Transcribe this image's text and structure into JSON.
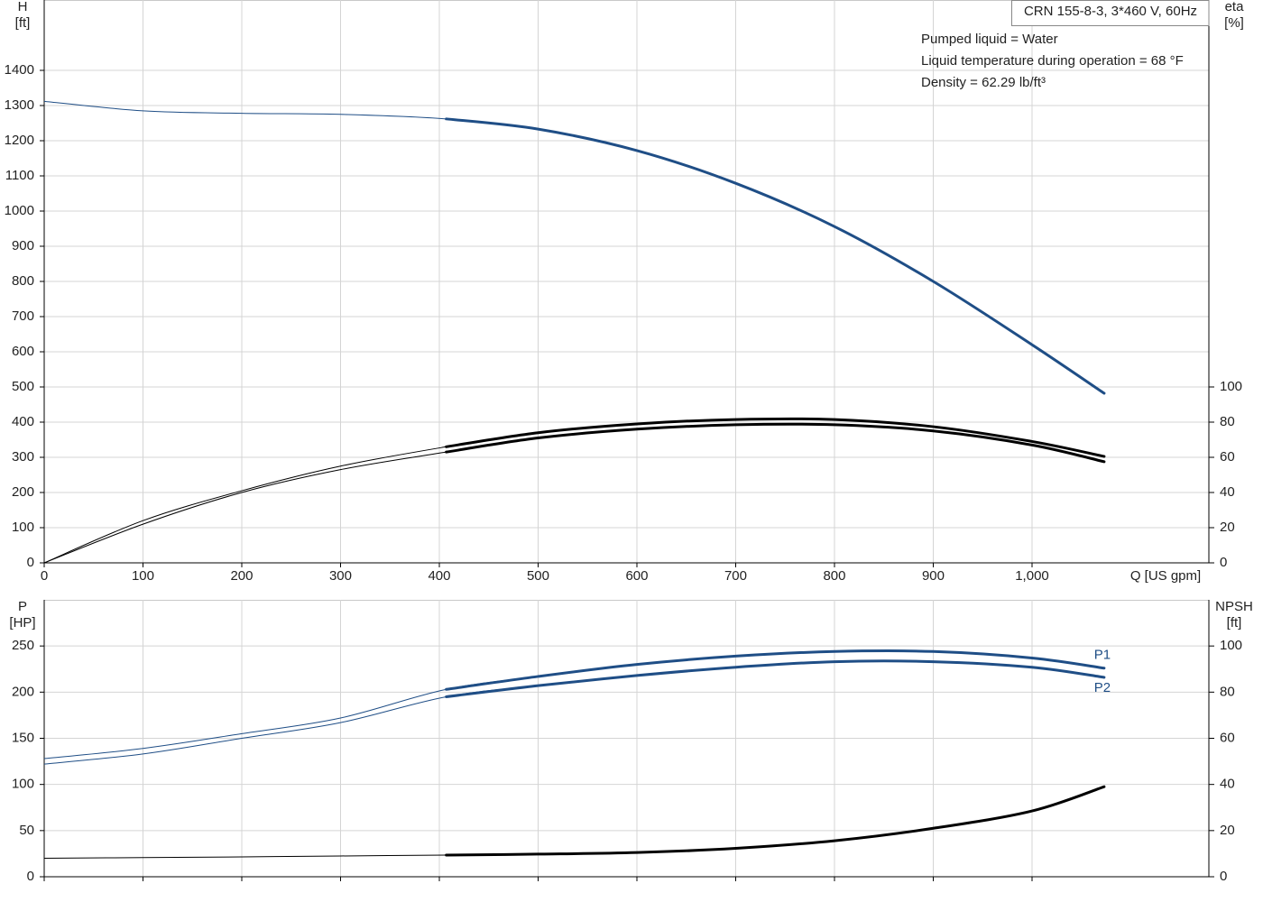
{
  "chart_data": [
    {
      "type": "line",
      "title": "CRN 155-8-3, 3*460 V, 60Hz",
      "annotations": [
        "Pumped liquid = Water",
        "Liquid temperature during operation = 68 °F",
        "Density = 62.29 lb/ft³"
      ],
      "ylabel": "H",
      "yunit": "[ft]",
      "y2label": "eta",
      "y2unit": "[%]",
      "xlabel": "Q [US gpm]",
      "x": [
        0,
        100,
        200,
        300,
        407,
        500,
        600,
        700,
        800,
        900,
        1000,
        1073
      ],
      "xlim": [
        0,
        1179
      ],
      "xticks": [
        0,
        100,
        200,
        300,
        400,
        500,
        600,
        700,
        800,
        900,
        {
          "value": 1000,
          "label": "1,000"
        }
      ],
      "ylim": [
        0,
        1600
      ],
      "yticks": [
        0,
        100,
        200,
        300,
        400,
        500,
        600,
        700,
        800,
        900,
        1000,
        1100,
        1200,
        1300,
        1400
      ],
      "y2lim": [
        0,
        320
      ],
      "y2ticks": [
        0,
        20,
        40,
        60,
        80,
        100
      ],
      "grid": true,
      "operating_range": [
        407,
        1073
      ],
      "series": [
        {
          "color": "#1f4e86",
          "values": [
            1312,
            1285,
            1278,
            1275,
            1262,
            1233,
            1172,
            1079,
            956,
            800,
            620,
            482
          ]
        },
        {
          "color": "#000000",
          "axis": "y2",
          "values": [
            0,
            24,
            41,
            55,
            66,
            74,
            79,
            81.5,
            81.5,
            77.4,
            69,
            60.5
          ]
        },
        {
          "color": "#000000",
          "axis": "y2",
          "values": [
            0,
            22,
            40,
            53,
            63,
            71,
            76,
            78.5,
            78.5,
            75,
            67,
            57.5
          ]
        }
      ]
    },
    {
      "type": "line",
      "ylabel": "P",
      "yunit": "[HP]",
      "y2label": "NPSH",
      "y2unit": "[ft]",
      "x": [
        0,
        100,
        200,
        300,
        407,
        500,
        600,
        700,
        800,
        900,
        1000,
        1073
      ],
      "xlim": [
        0,
        1179
      ],
      "xticks": [
        0,
        100,
        200,
        300,
        400,
        500,
        600,
        700,
        800,
        900,
        1000
      ],
      "xtick_labels": false,
      "ylim": [
        0,
        300
      ],
      "yticks": [
        0,
        50,
        100,
        150,
        200,
        250
      ],
      "y2lim": [
        0,
        120
      ],
      "y2ticks": [
        0,
        20,
        40,
        60,
        80,
        100
      ],
      "grid": true,
      "operating_range": [
        407,
        1073
      ],
      "series": [
        {
          "name": "P1",
          "color": "#1f4e86",
          "values": [
            128,
            139,
            155,
            172,
            203,
            217,
            230,
            239,
            244,
            244,
            237,
            226
          ]
        },
        {
          "name": "P2",
          "color": "#1f4e86",
          "values": [
            122,
            133,
            150,
            167,
            195,
            207,
            218,
            227,
            233,
            233,
            227,
            216
          ]
        },
        {
          "color": "#000000",
          "axis": "y2",
          "values": [
            8,
            8.3,
            8.6,
            9,
            9.4,
            9.8,
            10.5,
            12.3,
            15.6,
            21,
            28.5,
            39
          ]
        }
      ]
    }
  ]
}
